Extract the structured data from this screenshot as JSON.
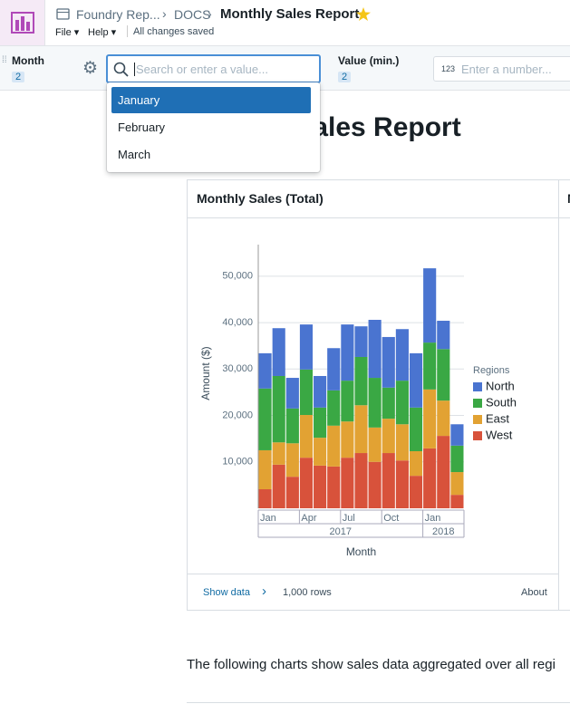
{
  "header": {
    "breadcrumb": [
      "Foundry Rep...",
      "DOCS"
    ],
    "title": "Monthly Sales Report",
    "menu": [
      "File",
      "Help"
    ],
    "status": "All changes saved"
  },
  "filters": [
    {
      "label": "Month",
      "badge": 2,
      "placeholder": "Search or enter a value..."
    },
    {
      "label": "Value (min.)",
      "badge": 2,
      "prefix": "123",
      "placeholder": "Enter a number..."
    }
  ],
  "dropdown": {
    "options": [
      "January",
      "February",
      "March"
    ],
    "selected": 0
  },
  "document": {
    "heading": "Monthly Sales Report",
    "cards": [
      {
        "footer": {
          "link": "Show data",
          "rows": "1,000 rows",
          "about": "About"
        }
      },
      {
        "title": "M"
      }
    ],
    "paragraph": "The following charts show sales data aggregated over all regi"
  },
  "chart_data": {
    "type": "bar",
    "stacked": true,
    "title": "Monthly Sales (Total)",
    "x_label": "Month",
    "y_label": "Amount ($)",
    "legend_title": "Regions",
    "legend": "right",
    "grid": true,
    "categories": [
      "Jan",
      null,
      null,
      "Apr",
      null,
      null,
      "Jul",
      null,
      null,
      "Oct",
      null,
      null,
      "Jan",
      null,
      null
    ],
    "years": [
      2017,
      2018
    ],
    "series": [
      {
        "name": "North",
        "color": "#4a74d0",
        "values": [
          7600,
          10300,
          6600,
          9700,
          6800,
          9100,
          12100,
          6600,
          12500,
          10900,
          11100,
          11700,
          16000,
          6100,
          4600
        ]
      },
      {
        "name": "South",
        "color": "#3aa844",
        "values": [
          13300,
          14300,
          7500,
          9800,
          6500,
          7600,
          8800,
          10400,
          10700,
          6700,
          9400,
          9400,
          10100,
          11100,
          5700
        ]
      },
      {
        "name": "East",
        "color": "#e2a233",
        "values": [
          8400,
          4800,
          7200,
          9200,
          6000,
          8800,
          7800,
          10300,
          7400,
          7400,
          7800,
          5300,
          12700,
          7600,
          4900
        ]
      },
      {
        "name": "West",
        "color": "#d8523b",
        "values": [
          4100,
          9400,
          6800,
          10900,
          9200,
          9000,
          10900,
          11900,
          10000,
          11900,
          10300,
          7000,
          12900,
          15600,
          2900
        ]
      }
    ],
    "ylim": [
      0,
      56800
    ],
    "yticks": [
      {
        "value": 10000,
        "label": "10,000"
      },
      {
        "value": 20000,
        "label": "20,000"
      },
      {
        "value": 30000,
        "label": "30,000"
      },
      {
        "value": 40000,
        "label": "40,000"
      },
      {
        "value": 50000,
        "label": "50,000"
      }
    ]
  }
}
